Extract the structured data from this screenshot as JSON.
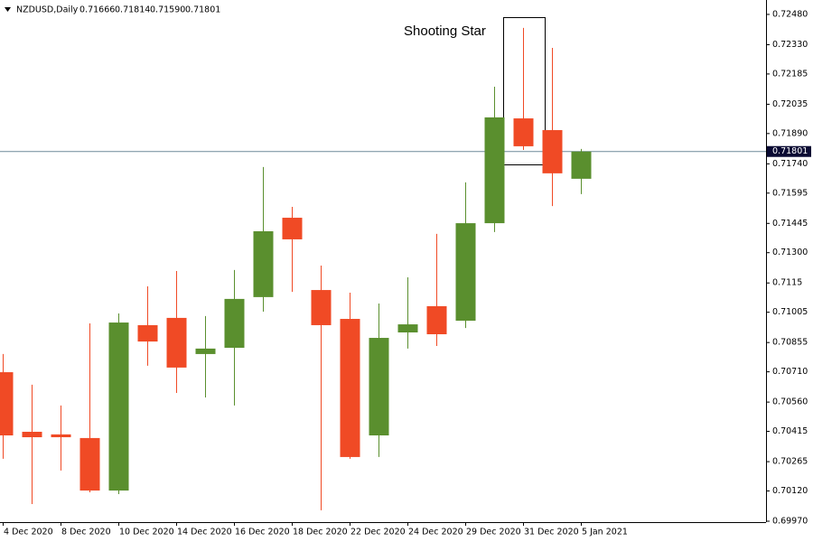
{
  "chart_data": {
    "type": "candlestick",
    "header": "NZDUSD,Daily",
    "ohlc_labels": [
      "0.71666",
      "0.71814",
      "0.71590",
      "0.71801"
    ],
    "annotation": "Shooting Star",
    "categories": [
      "4 Dec 2020",
      null,
      "8 Dec 2020",
      null,
      "10 Dec 2020",
      null,
      "14 Dec 2020",
      null,
      "16 Dec 2020",
      null,
      "18 Dec 2020",
      null,
      "22 Dec 2020",
      null,
      "24 Dec 2020",
      null,
      "29 Dec 2020",
      null,
      "31 Dec 2020",
      null,
      "5 Jan 2021"
    ],
    "open": [
      0.70708,
      0.70413,
      0.704,
      0.70382,
      0.70122,
      0.70941,
      0.70977,
      0.70798,
      0.70829,
      0.7108,
      0.71473,
      0.71115,
      0.70972,
      0.70395,
      0.70905,
      0.71035,
      0.70963,
      0.71446,
      0.71965,
      0.71907,
      0.71666
    ],
    "high": [
      0.70798,
      0.70646,
      0.70543,
      0.7095,
      0.70999,
      0.71133,
      0.71209,
      0.70986,
      0.71214,
      0.71724,
      0.71527,
      0.71236,
      0.71102,
      0.71048,
      0.71178,
      0.71393,
      0.71648,
      0.72122,
      0.72413,
      0.72314,
      0.71814
    ],
    "low": [
      0.70279,
      0.70055,
      0.70221,
      0.70113,
      0.70104,
      0.7074,
      0.70605,
      0.70583,
      0.70543,
      0.71008,
      0.71106,
      0.70024,
      0.70279,
      0.70288,
      0.70825,
      0.70838,
      0.70927,
      0.71402,
      0.71809,
      0.71531,
      0.7159
    ],
    "close": [
      0.70395,
      0.70386,
      0.70386,
      0.70122,
      0.70954,
      0.7086,
      0.70731,
      0.70825,
      0.71071,
      0.71406,
      0.71366,
      0.70941,
      0.70288,
      0.70878,
      0.70945,
      0.70896,
      0.71446,
      0.7197,
      0.71827,
      0.71693,
      0.71801
    ],
    "up_color": "#5a8f2e",
    "down_color": "#f04a25",
    "current_price": {
      "value": 0.71801,
      "label": "0.71801"
    },
    "ylim": [
      0.6997,
      0.72529
    ],
    "yticks": [
      {
        "value": 0.7248,
        "label": "0.72480"
      },
      {
        "value": 0.7233,
        "label": "0.72330"
      },
      0.72185,
      0.72035,
      {
        "value": 0.7189,
        "label": "0.71890"
      },
      {
        "value": 0.7174,
        "label": "0.71740"
      },
      0.71595,
      0.71445,
      {
        "value": 0.713,
        "label": "0.71300"
      },
      0.7115,
      0.71005,
      0.70855,
      {
        "value": 0.7071,
        "label": "0.70710"
      },
      {
        "value": 0.7056,
        "label": "0.70560"
      },
      0.70415,
      0.70265,
      {
        "value": 0.7012,
        "label": "0.70120"
      },
      {
        "value": 0.6997,
        "label": "0.69970"
      }
    ]
  }
}
